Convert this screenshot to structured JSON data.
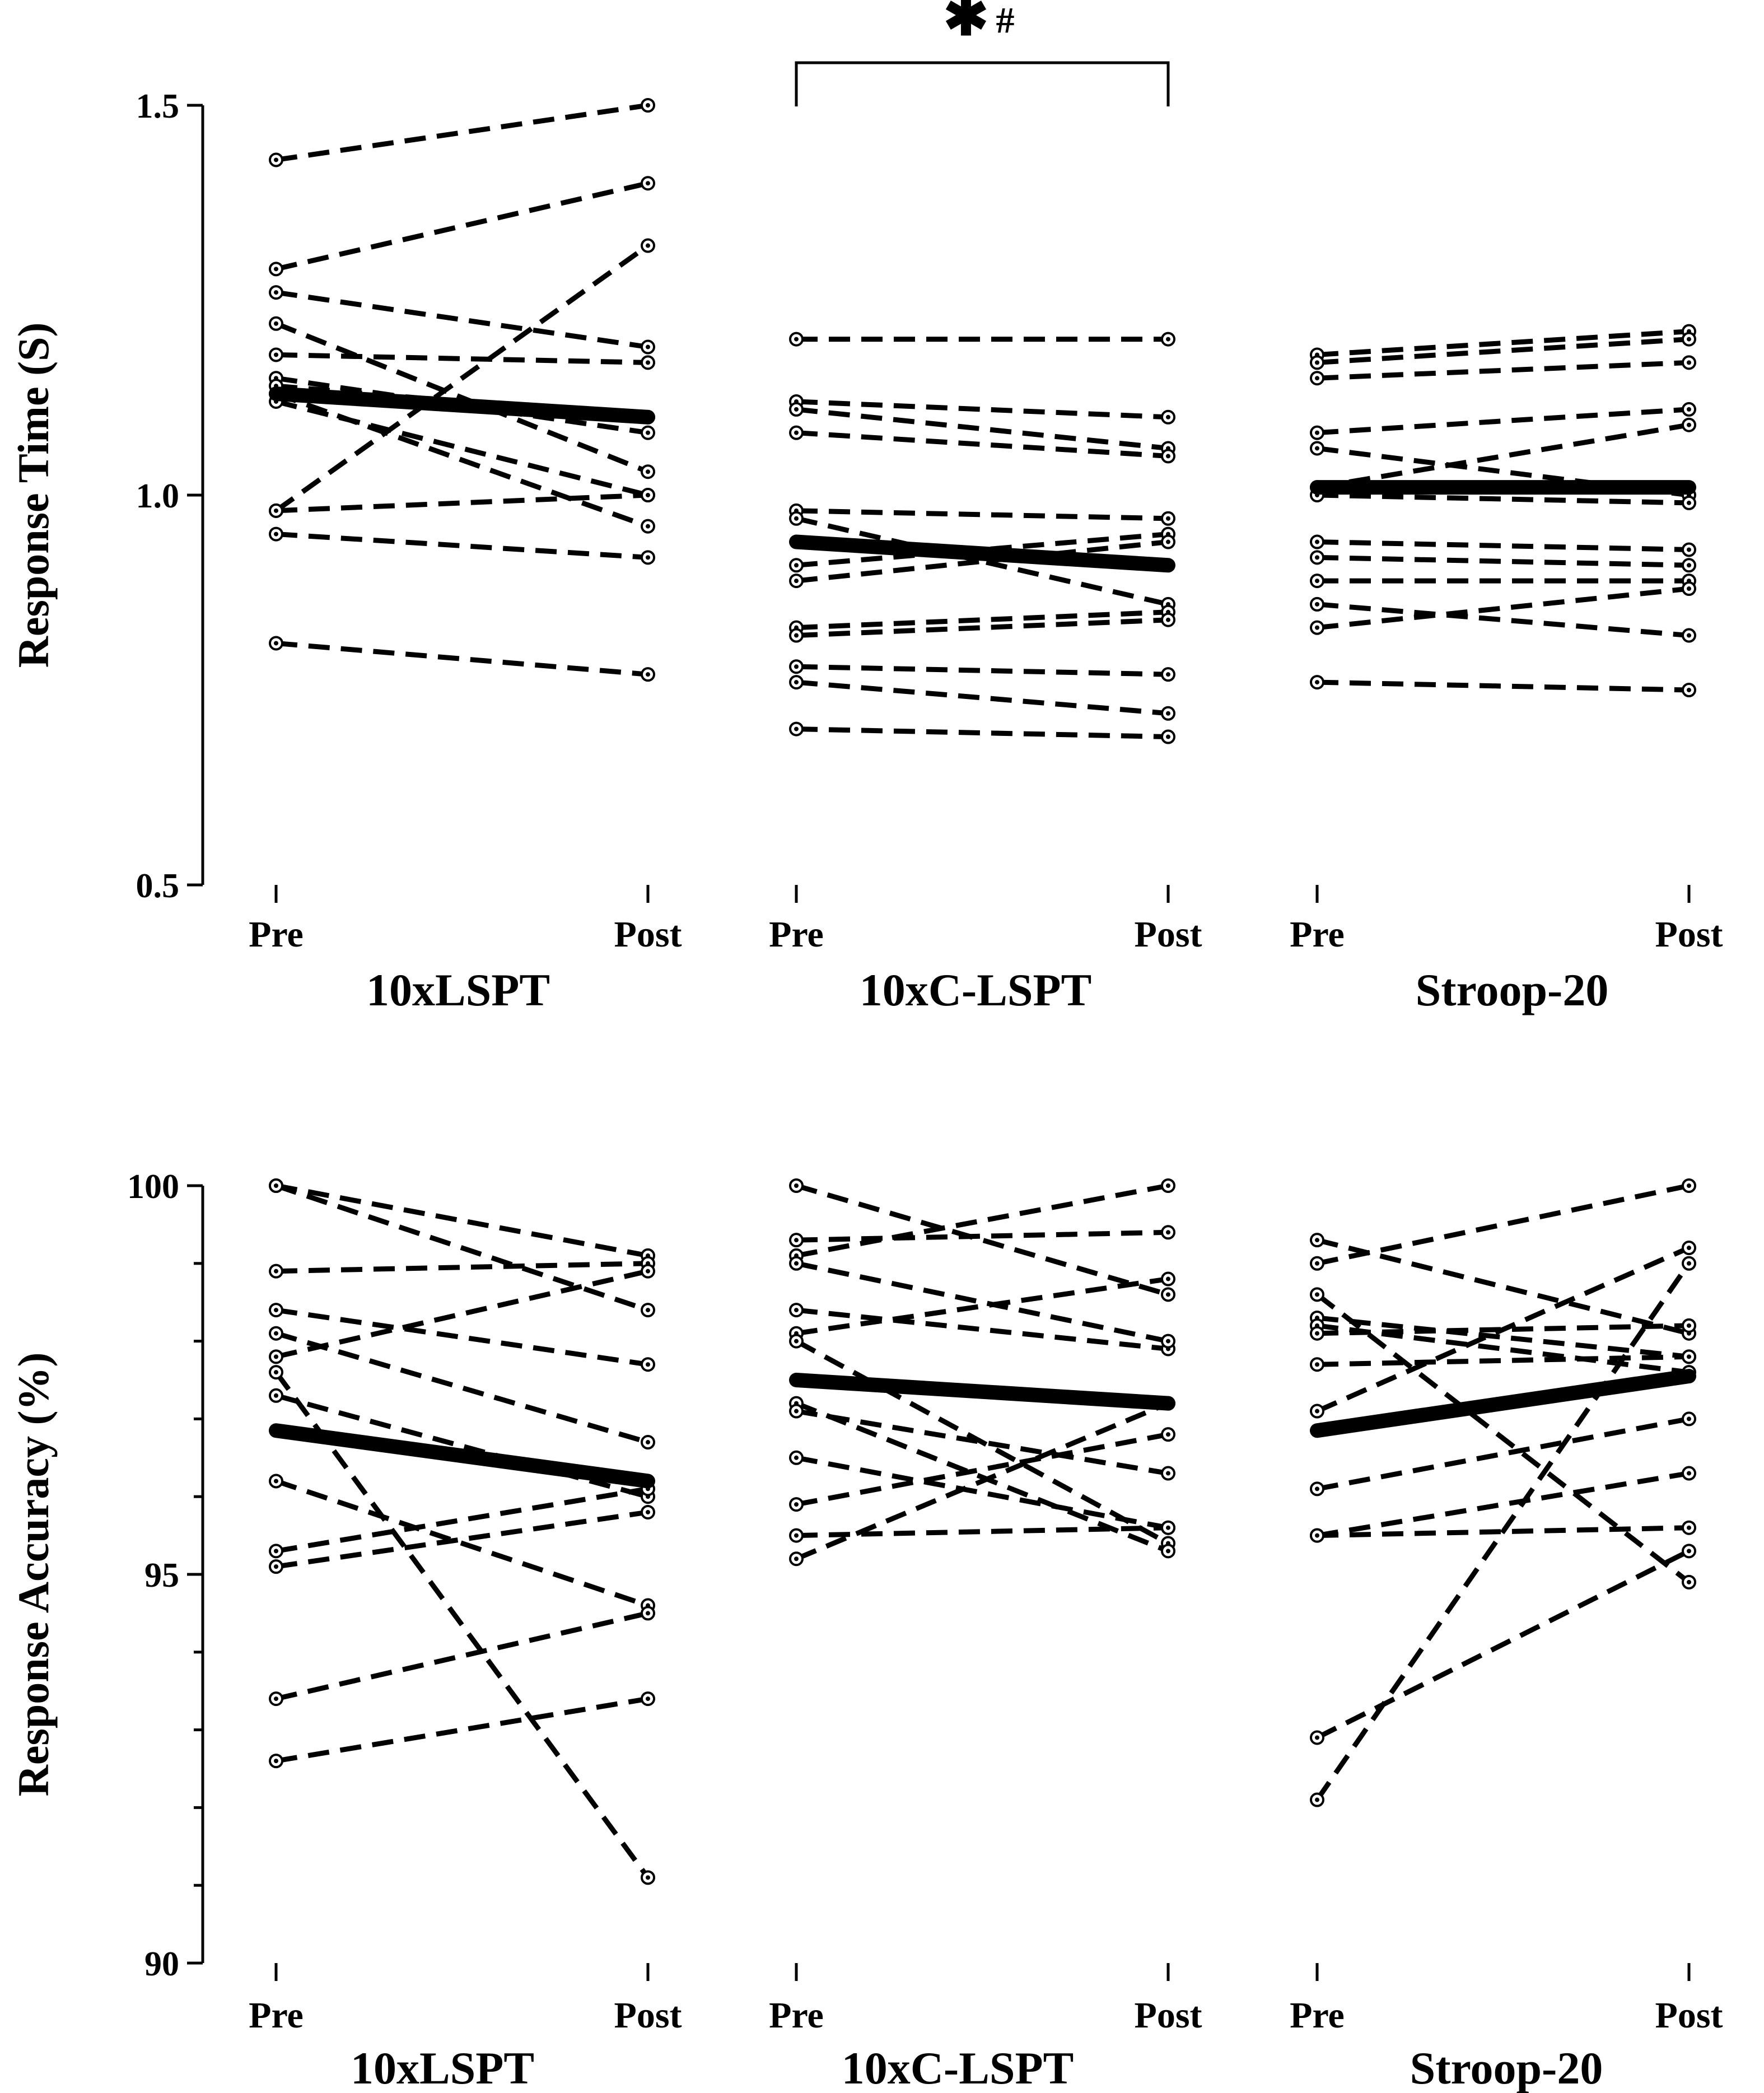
{
  "chart_data": [
    {
      "type": "line",
      "variant": "paired-pre-post",
      "ylabel": "Response Time (S)",
      "ylim": [
        0.5,
        1.5
      ],
      "yticks": [
        0.5,
        1.0,
        1.5
      ],
      "yticklabels": [
        "0.5",
        "1.0",
        "1.5"
      ],
      "minor_step": null,
      "xticklabels": [
        "Pre",
        "Post"
      ],
      "groups": [
        {
          "name": "10xLSPT",
          "mean": [
            1.13,
            1.1
          ],
          "pairs": [
            [
              1.43,
              1.5
            ],
            [
              1.29,
              1.4
            ],
            [
              0.98,
              1.32
            ],
            [
              1.26,
              1.19
            ],
            [
              1.18,
              1.17
            ],
            [
              1.22,
              1.03
            ],
            [
              1.15,
              1.08
            ],
            [
              1.14,
              1.1
            ],
            [
              1.13,
              0.96
            ],
            [
              1.12,
              1.0
            ],
            [
              0.98,
              1.0
            ],
            [
              0.95,
              0.92
            ],
            [
              0.81,
              0.77
            ]
          ]
        },
        {
          "name": "10xC-LSPT",
          "mean": [
            0.94,
            0.91
          ],
          "pairs": [
            [
              1.2,
              1.2
            ],
            [
              1.12,
              1.1
            ],
            [
              1.11,
              1.06
            ],
            [
              1.08,
              1.05
            ],
            [
              0.98,
              0.97
            ],
            [
              0.97,
              0.86
            ],
            [
              0.91,
              0.95
            ],
            [
              0.89,
              0.94
            ],
            [
              0.83,
              0.85
            ],
            [
              0.82,
              0.84
            ],
            [
              0.78,
              0.77
            ],
            [
              0.76,
              0.72
            ],
            [
              0.7,
              0.69
            ]
          ]
        },
        {
          "name": "Stroop-20",
          "mean": [
            1.01,
            1.01
          ],
          "pairs": [
            [
              1.18,
              1.21
            ],
            [
              1.17,
              1.2
            ],
            [
              1.15,
              1.17
            ],
            [
              1.08,
              1.11
            ],
            [
              1.06,
              1.0
            ],
            [
              1.01,
              1.09
            ],
            [
              1.0,
              0.99
            ],
            [
              0.94,
              0.93
            ],
            [
              0.92,
              0.91
            ],
            [
              0.89,
              0.89
            ],
            [
              0.86,
              0.82
            ],
            [
              0.83,
              0.88
            ],
            [
              0.76,
              0.75
            ]
          ]
        }
      ],
      "annotation": {
        "group": "10xC-LSPT",
        "star": "✱",
        "hash": "#"
      }
    },
    {
      "type": "line",
      "variant": "paired-pre-post",
      "ylabel": "Response Accuracy (%)",
      "ylim": [
        90,
        100
      ],
      "yticks": [
        90,
        95,
        100
      ],
      "yticklabels": [
        "90",
        "95",
        "100"
      ],
      "minor_step": 1,
      "xticklabels": [
        "Pre",
        "Post"
      ],
      "groups": [
        {
          "name": "10xLSPT",
          "mean": [
            96.85,
            96.2
          ],
          "pairs": [
            [
              100.0,
              99.1
            ],
            [
              100.0,
              98.4
            ],
            [
              98.9,
              99.0
            ],
            [
              98.4,
              97.7
            ],
            [
              98.1,
              96.7
            ],
            [
              97.8,
              98.9
            ],
            [
              97.3,
              96.0
            ],
            [
              97.6,
              91.1
            ],
            [
              96.2,
              94.6
            ],
            [
              95.3,
              96.1
            ],
            [
              95.1,
              95.8
            ],
            [
              93.4,
              94.5
            ],
            [
              92.6,
              93.4
            ]
          ]
        },
        {
          "name": "10xC-LSPT",
          "mean": [
            97.5,
            97.2
          ],
          "pairs": [
            [
              100.0,
              98.6
            ],
            [
              99.3,
              99.4
            ],
            [
              99.1,
              100.0
            ],
            [
              98.4,
              97.9
            ],
            [
              98.1,
              98.8
            ],
            [
              98.0,
              95.4
            ],
            [
              97.2,
              95.3
            ],
            [
              97.1,
              96.3
            ],
            [
              96.5,
              95.6
            ],
            [
              95.9,
              96.8
            ],
            [
              95.5,
              95.6
            ],
            [
              95.2,
              97.2
            ],
            [
              99.0,
              98.0
            ]
          ]
        },
        {
          "name": "Stroop-20",
          "mean": [
            96.85,
            97.55
          ],
          "pairs": [
            [
              99.3,
              98.1
            ],
            [
              99.0,
              100.0
            ],
            [
              98.6,
              94.9
            ],
            [
              98.3,
              97.8
            ],
            [
              98.2,
              97.6
            ],
            [
              98.1,
              98.2
            ],
            [
              97.7,
              97.8
            ],
            [
              97.1,
              99.2
            ],
            [
              96.1,
              97.0
            ],
            [
              95.5,
              96.3
            ],
            [
              95.5,
              95.6
            ],
            [
              92.9,
              95.3
            ],
            [
              92.1,
              99.0
            ]
          ]
        }
      ],
      "annotation": null
    }
  ]
}
